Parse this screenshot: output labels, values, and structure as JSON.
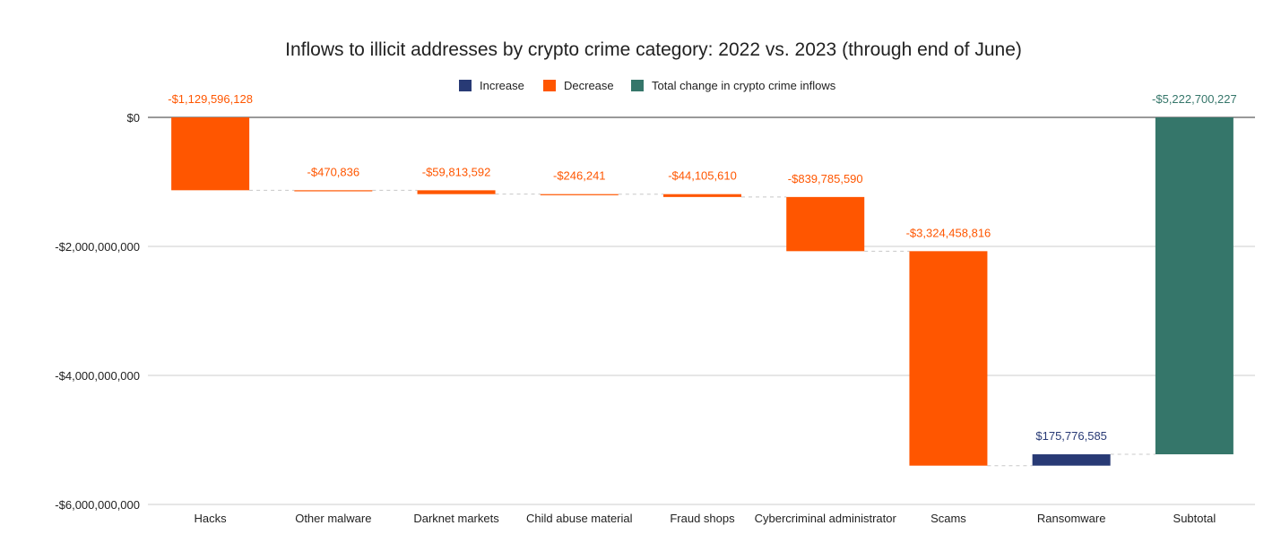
{
  "chart_data": {
    "type": "bar",
    "subtype": "waterfall",
    "title": "Inflows to illicit addresses by crypto crime category: 2022 vs. 2023 (through end of June)",
    "xlabel": "",
    "ylabel": "",
    "ylim": [
      -6000000000,
      0
    ],
    "yticks": [
      0,
      -2000000000,
      -4000000000,
      -6000000000
    ],
    "ytick_labels": [
      "$0",
      "-$2,000,000,000",
      "-$4,000,000,000",
      "-$6,000,000,000"
    ],
    "grid": true,
    "legend_position": "top-center",
    "legend": [
      {
        "key": "increase",
        "label": "Increase",
        "color": "#283a75"
      },
      {
        "key": "decrease",
        "label": "Decrease",
        "color": "#ff5600"
      },
      {
        "key": "total",
        "label": "Total change in crypto crime inflows",
        "color": "#35766a"
      }
    ],
    "categories": [
      "Hacks",
      "Other malware",
      "Darknet markets",
      "Child abuse material",
      "Fraud shops",
      "Cybercriminal administrator",
      "Scams",
      "Ransomware",
      "Subtotal"
    ],
    "values": [
      -1129596128,
      -470836,
      -59813592,
      -246241,
      -44105610,
      -839785590,
      -3324458816,
      175776585,
      -5222700227
    ],
    "kinds": [
      "decrease",
      "decrease",
      "decrease",
      "decrease",
      "decrease",
      "decrease",
      "decrease",
      "increase",
      "total"
    ],
    "data_labels": [
      "-$1,129,596,128",
      "-$470,836",
      "-$59,813,592",
      "-$246,241",
      "-$44,105,610",
      "-$839,785,590",
      "-$3,324,458,816",
      "$175,776,585",
      "-$5,222,700,227"
    ]
  }
}
